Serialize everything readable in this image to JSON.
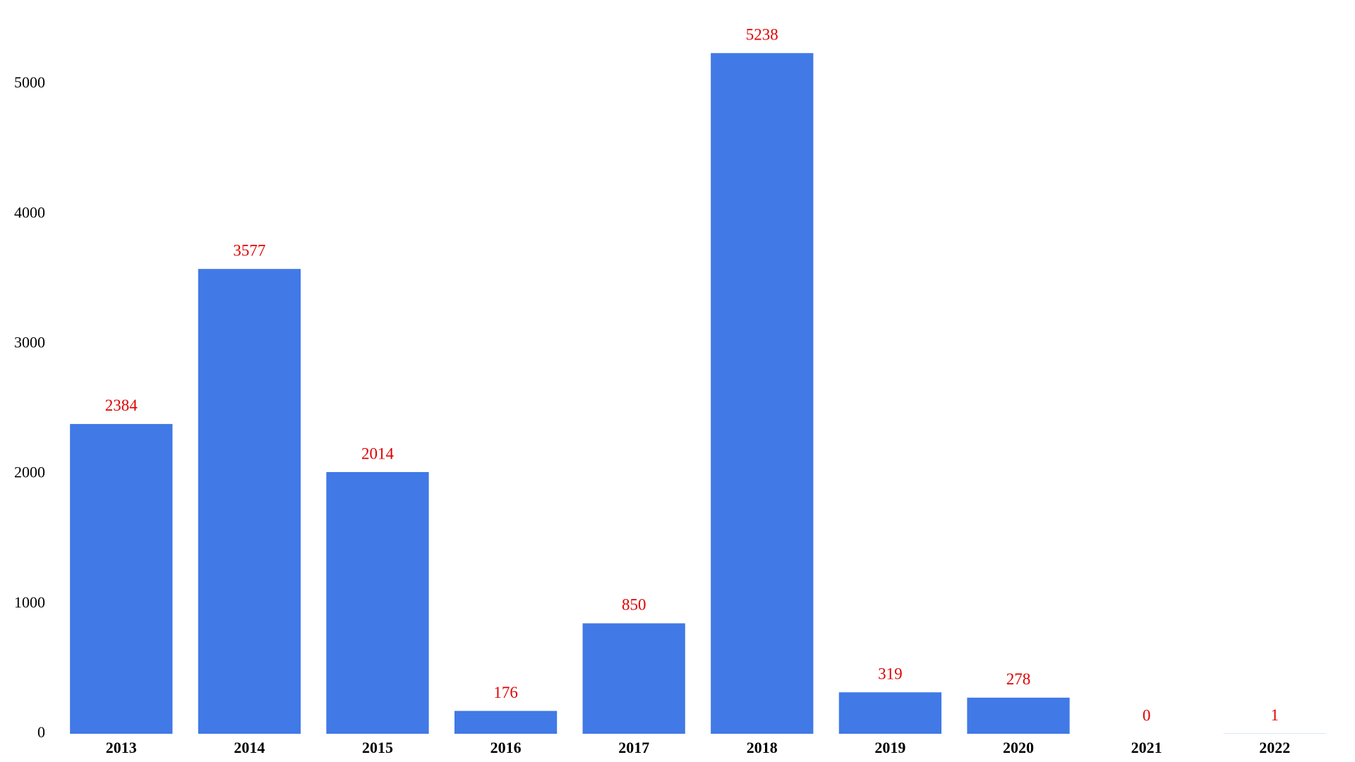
{
  "chart_data": {
    "type": "bar",
    "categories": [
      "2013",
      "2014",
      "2015",
      "2016",
      "2017",
      "2018",
      "2019",
      "2020",
      "2021",
      "2022"
    ],
    "values": [
      2384,
      3577,
      2014,
      176,
      850,
      5238,
      319,
      278,
      0,
      1
    ],
    "color": "#4179e6",
    "label_color": "#e00000",
    "ylim": [
      0,
      5500
    ],
    "yticks": [
      0,
      1000,
      2000,
      3000,
      4000,
      5000
    ],
    "grid": false
  }
}
